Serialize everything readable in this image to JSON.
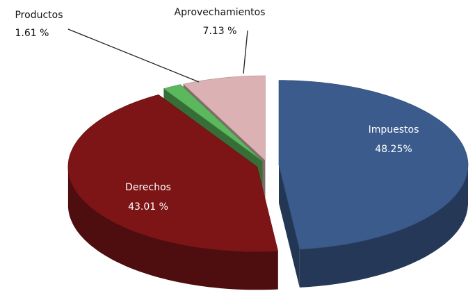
{
  "chart_data": {
    "type": "pie",
    "categories": [
      "Impuestos",
      "Derechos",
      "Productos",
      "Aprovechamientos"
    ],
    "values": [
      48.25,
      43.01,
      1.61,
      7.13
    ],
    "value_labels": [
      "48.25%",
      "43.01 %",
      "1.61 %",
      "7.13 %"
    ],
    "colors": [
      "#3b5b8d",
      "#7d1517",
      "#5cb85c",
      "#dbb1b3"
    ]
  }
}
